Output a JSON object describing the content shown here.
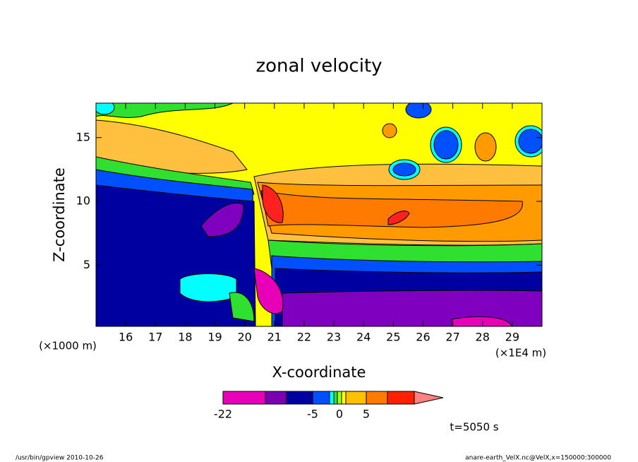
{
  "chart_data": {
    "type": "contour",
    "title": "zonal velocity",
    "x_label": "X-coordinate",
    "y_label": "Z-coordinate",
    "x_unit_label": "(×1E4 m)",
    "y_unit_label": "(×1000 m)",
    "xlim": [
      15,
      30
    ],
    "xticks": [
      16,
      17,
      18,
      19,
      20,
      21,
      22,
      23,
      24,
      25,
      26,
      27,
      28,
      29
    ],
    "ylim": [
      0.2,
      17.7
    ],
    "yticks": [
      5,
      10,
      15
    ],
    "colorbar": {
      "ticks": [
        -22,
        -5,
        0,
        5
      ]
    },
    "time_label": "t=5050 s",
    "footer_left": "/usr/bin/gpview   2010-10-26",
    "footer_right": "anare-earth_VelX.nc@VelX,x=150000:300000"
  }
}
